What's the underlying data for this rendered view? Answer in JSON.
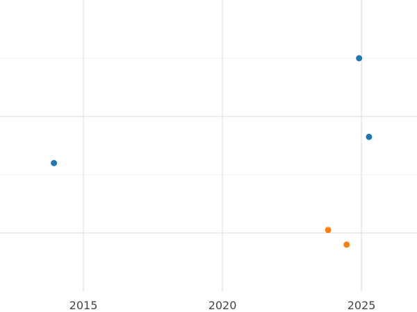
{
  "chart_data": {
    "type": "scatter",
    "title": "",
    "xlabel": "",
    "ylabel": "",
    "x_axis": {
      "type": "time",
      "range": [
        "2012-01-01",
        "2026-12-31"
      ],
      "tick_labels": [
        "2015",
        "2020",
        "2025"
      ],
      "ticks": [
        "2015-01-01",
        "2020-01-01",
        "2025-01-01"
      ]
    },
    "y_axis": {
      "range": [
        0,
        10
      ],
      "tick_labels_visible": false,
      "major_ticks": [
        2,
        6
      ],
      "minor_ticks": [
        4,
        8
      ]
    },
    "grid": true,
    "legend": "none",
    "series": [
      {
        "color": "#1f77b4",
        "points": [
          {
            "x": "2013-12-10",
            "y": 4.4
          },
          {
            "x": "2024-12-01",
            "y": 8.0
          },
          {
            "x": "2025-04-10",
            "y": 5.3
          }
        ]
      },
      {
        "color": "#ff7f0e",
        "points": [
          {
            "x": "2023-10-20",
            "y": 2.1
          },
          {
            "x": "2024-06-20",
            "y": 1.6
          }
        ]
      }
    ]
  }
}
